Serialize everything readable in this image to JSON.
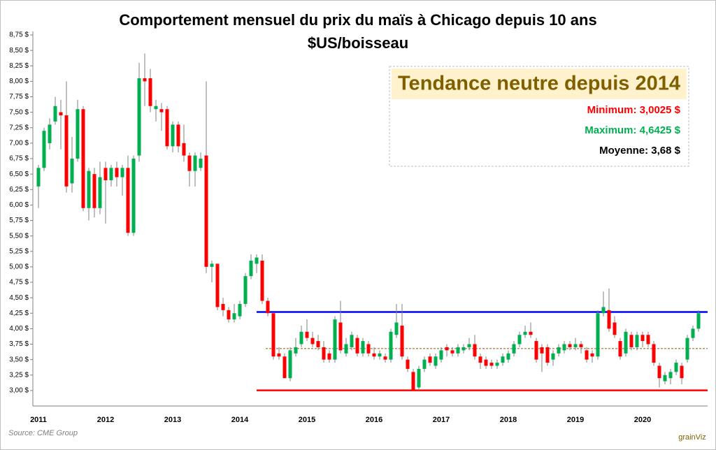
{
  "chart_data": {
    "type": "candlestick",
    "title": "Comportement mensuel du prix du maïs à Chicago depuis 10 ans",
    "subtitle": "$US/boisseau",
    "source": "Source: CME Group",
    "logo": "grainViz",
    "annotation_box": {
      "title": "Tendance neutre depuis 2014",
      "lines": [
        {
          "text": "Minimum: 3,0025 $",
          "color": "#ff0000"
        },
        {
          "text": "Maximum: 4,6425 $",
          "color": "#00b050"
        },
        {
          "text": "Moyenne: 3,68 $",
          "color": "#000000"
        }
      ]
    },
    "up_color": "#00b050",
    "down_color": "#ff0000",
    "hlines": [
      {
        "value": 4.27,
        "color": "#0000ff",
        "dashed": false
      },
      {
        "value": 3.0025,
        "color": "#ff0000",
        "dashed": false
      },
      {
        "value": 3.68,
        "color": "#b8925a",
        "dashed": true
      }
    ],
    "ylim": [
      2.75,
      8.75
    ],
    "yticks": [
      {
        "value": 3.0,
        "label": "3,00 $"
      },
      {
        "value": 3.25,
        "label": "3,25 $"
      },
      {
        "value": 3.5,
        "label": "3,50 $"
      },
      {
        "value": 3.75,
        "label": "3,75 $"
      },
      {
        "value": 4.0,
        "label": "4,00 $"
      },
      {
        "value": 4.25,
        "label": "4,25 $"
      },
      {
        "value": 4.5,
        "label": "4,50 $"
      },
      {
        "value": 4.75,
        "label": "4,75 $"
      },
      {
        "value": 5.0,
        "label": "5,00 $"
      },
      {
        "value": 5.25,
        "label": "5,25 $"
      },
      {
        "value": 5.5,
        "label": "5,50 $"
      },
      {
        "value": 5.75,
        "label": "5,75 $"
      },
      {
        "value": 6.0,
        "label": "6,00 $"
      },
      {
        "value": 6.25,
        "label": "6,25 $"
      },
      {
        "value": 6.5,
        "label": "6,50 $"
      },
      {
        "value": 6.75,
        "label": "6,75 $"
      },
      {
        "value": 7.0,
        "label": "7,00 $"
      },
      {
        "value": 7.25,
        "label": "7,25 $"
      },
      {
        "value": 7.5,
        "label": "7,50 $"
      },
      {
        "value": 7.75,
        "label": "7,75 $"
      },
      {
        "value": 8.0,
        "label": "8,00 $"
      },
      {
        "value": 8.25,
        "label": "8,25 $"
      },
      {
        "value": 8.5,
        "label": "8,50 $"
      },
      {
        "value": 8.75,
        "label": "8,75 $"
      }
    ],
    "categories": [
      "2011",
      null,
      null,
      null,
      null,
      null,
      null,
      null,
      null,
      null,
      null,
      null,
      "2012",
      null,
      null,
      null,
      null,
      null,
      null,
      null,
      null,
      null,
      null,
      null,
      "2013",
      null,
      null,
      null,
      null,
      null,
      null,
      null,
      null,
      null,
      null,
      null,
      "2014",
      null,
      null,
      null,
      null,
      null,
      null,
      null,
      null,
      null,
      null,
      null,
      "2015",
      null,
      null,
      null,
      null,
      null,
      null,
      null,
      null,
      null,
      null,
      null,
      "2016",
      null,
      null,
      null,
      null,
      null,
      null,
      null,
      null,
      null,
      null,
      null,
      "2017",
      null,
      null,
      null,
      null,
      null,
      null,
      null,
      null,
      null,
      null,
      null,
      "2018",
      null,
      null,
      null,
      null,
      null,
      null,
      null,
      null,
      null,
      null,
      null,
      "2019",
      null,
      null,
      null,
      null,
      null,
      null,
      null,
      null,
      null,
      null,
      null,
      "2020",
      null,
      null,
      null,
      null,
      null,
      null,
      null,
      null,
      null,
      null
    ],
    "open": [
      6.3,
      6.6,
      7.0,
      7.35,
      7.5,
      7.45,
      6.35,
      6.75,
      7.55,
      5.95,
      6.5,
      5.95,
      6.6,
      6.4,
      6.6,
      6.45,
      6.6,
      5.55,
      6.8,
      8.05,
      8.05,
      7.55,
      7.55,
      7.55,
      6.95,
      7.3,
      7.0,
      6.8,
      6.55,
      6.6,
      6.8,
      5.0,
      5.05,
      4.4,
      4.3,
      4.15,
      4.2,
      4.4,
      4.85,
      5.05,
      5.1,
      4.45,
      4.25,
      3.6,
      3.55,
      3.2,
      3.6,
      3.75,
      3.95,
      3.85,
      3.8,
      3.7,
      3.6,
      3.5,
      4.1,
      3.6,
      3.7,
      3.85,
      3.6,
      3.75,
      3.6,
      3.55,
      3.55,
      3.5,
      3.9,
      4.05,
      3.5,
      3.3,
      3.05,
      3.35,
      3.55,
      3.4,
      3.5,
      3.7,
      3.65,
      3.6,
      3.65,
      3.7,
      3.75,
      3.55,
      3.5,
      3.45,
      3.4,
      3.45,
      3.5,
      3.6,
      3.75,
      3.9,
      3.95,
      3.8,
      3.7,
      3.7,
      3.5,
      3.6,
      3.65,
      3.75,
      3.7,
      3.75,
      3.65,
      3.6,
      3.55,
      4.25,
      4.3,
      4.1,
      3.8,
      3.6,
      3.9,
      3.7,
      3.9,
      3.9,
      3.75,
      3.4,
      3.15,
      3.2,
      3.3,
      3.4,
      3.5,
      3.85,
      4.0
    ],
    "high": [
      6.65,
      7.25,
      7.4,
      7.75,
      7.7,
      8.0,
      7.1,
      7.7,
      7.6,
      6.6,
      6.6,
      6.7,
      6.7,
      6.65,
      6.7,
      6.65,
      6.8,
      6.8,
      8.3,
      8.45,
      8.2,
      7.7,
      7.65,
      7.6,
      7.35,
      7.35,
      7.3,
      6.85,
      6.85,
      6.85,
      8.0,
      5.1,
      5.05,
      4.5,
      4.35,
      4.4,
      4.45,
      4.9,
      5.2,
      5.2,
      5.2,
      4.5,
      4.25,
      3.7,
      3.6,
      3.7,
      3.85,
      4.05,
      4.15,
      3.95,
      3.9,
      3.8,
      3.65,
      4.2,
      4.45,
      3.85,
      3.95,
      3.9,
      3.85,
      3.8,
      3.7,
      3.65,
      3.6,
      4.0,
      4.4,
      4.4,
      3.55,
      3.35,
      3.4,
      3.55,
      3.6,
      3.6,
      3.7,
      3.75,
      3.7,
      3.75,
      3.75,
      3.85,
      3.9,
      3.6,
      3.55,
      3.5,
      3.5,
      3.6,
      3.65,
      3.8,
      3.95,
      4.05,
      4.1,
      3.85,
      3.75,
      3.75,
      3.65,
      3.75,
      3.8,
      3.8,
      3.85,
      3.8,
      3.7,
      3.65,
      4.3,
      4.6,
      4.65,
      4.2,
      3.85,
      4.0,
      3.95,
      3.95,
      3.95,
      3.95,
      3.8,
      3.45,
      3.3,
      3.35,
      3.5,
      3.45,
      3.9,
      4.05,
      4.3
    ],
    "low": [
      5.95,
      6.55,
      6.9,
      7.3,
      6.9,
      6.2,
      6.2,
      6.7,
      5.9,
      5.75,
      5.8,
      5.85,
      5.7,
      6.3,
      6.3,
      6.15,
      5.5,
      5.5,
      6.7,
      7.6,
      7.5,
      7.35,
      7.2,
      6.9,
      6.85,
      6.85,
      6.7,
      6.3,
      6.3,
      6.55,
      4.9,
      4.75,
      4.3,
      4.2,
      4.1,
      4.1,
      4.15,
      4.35,
      4.8,
      4.9,
      4.4,
      4.2,
      3.5,
      3.5,
      3.2,
      3.15,
      3.55,
      3.7,
      3.8,
      3.7,
      3.65,
      3.45,
      3.45,
      3.45,
      3.6,
      3.55,
      3.65,
      3.55,
      3.55,
      3.55,
      3.5,
      3.5,
      3.45,
      3.45,
      3.85,
      3.5,
      3.3,
      3.0,
      3.0,
      3.3,
      3.4,
      3.35,
      3.45,
      3.55,
      3.55,
      3.55,
      3.6,
      3.65,
      3.5,
      3.35,
      3.35,
      3.35,
      3.35,
      3.4,
      3.45,
      3.55,
      3.7,
      3.85,
      3.85,
      3.45,
      3.3,
      3.4,
      3.4,
      3.55,
      3.6,
      3.65,
      3.65,
      3.6,
      3.45,
      3.45,
      3.5,
      4.2,
      3.95,
      3.85,
      3.5,
      3.55,
      3.65,
      3.65,
      3.7,
      3.7,
      3.4,
      3.05,
      3.1,
      3.1,
      3.25,
      3.1,
      3.45,
      3.8,
      3.95
    ],
    "close": [
      6.6,
      7.2,
      7.3,
      7.6,
      7.45,
      6.3,
      6.75,
      7.55,
      5.95,
      6.55,
      5.95,
      6.45,
      6.4,
      6.6,
      6.45,
      6.6,
      5.55,
      6.75,
      8.05,
      8.0,
      7.6,
      7.6,
      7.5,
      6.95,
      7.3,
      6.95,
      6.8,
      6.55,
      6.8,
      6.75,
      5.0,
      5.05,
      4.35,
      4.3,
      4.15,
      4.25,
      4.4,
      4.85,
      5.1,
      5.15,
      4.45,
      4.25,
      3.55,
      3.55,
      3.2,
      3.65,
      3.7,
      3.95,
      3.85,
      3.75,
      3.7,
      3.5,
      3.5,
      4.15,
      3.65,
      3.75,
      3.9,
      3.6,
      3.8,
      3.6,
      3.55,
      3.6,
      3.5,
      3.95,
      4.1,
      3.55,
      3.35,
      3.0,
      3.35,
      3.5,
      3.45,
      3.55,
      3.65,
      3.65,
      3.6,
      3.7,
      3.7,
      3.75,
      3.55,
      3.45,
      3.4,
      3.4,
      3.45,
      3.55,
      3.6,
      3.75,
      3.9,
      3.95,
      3.9,
      3.5,
      3.6,
      3.45,
      3.6,
      3.7,
      3.75,
      3.7,
      3.75,
      3.7,
      3.5,
      3.55,
      4.25,
      4.35,
      4.0,
      3.9,
      3.55,
      3.95,
      3.7,
      3.9,
      3.8,
      3.75,
      3.45,
      3.2,
      3.25,
      3.3,
      3.45,
      3.2,
      3.85,
      4.0,
      4.25
    ]
  }
}
